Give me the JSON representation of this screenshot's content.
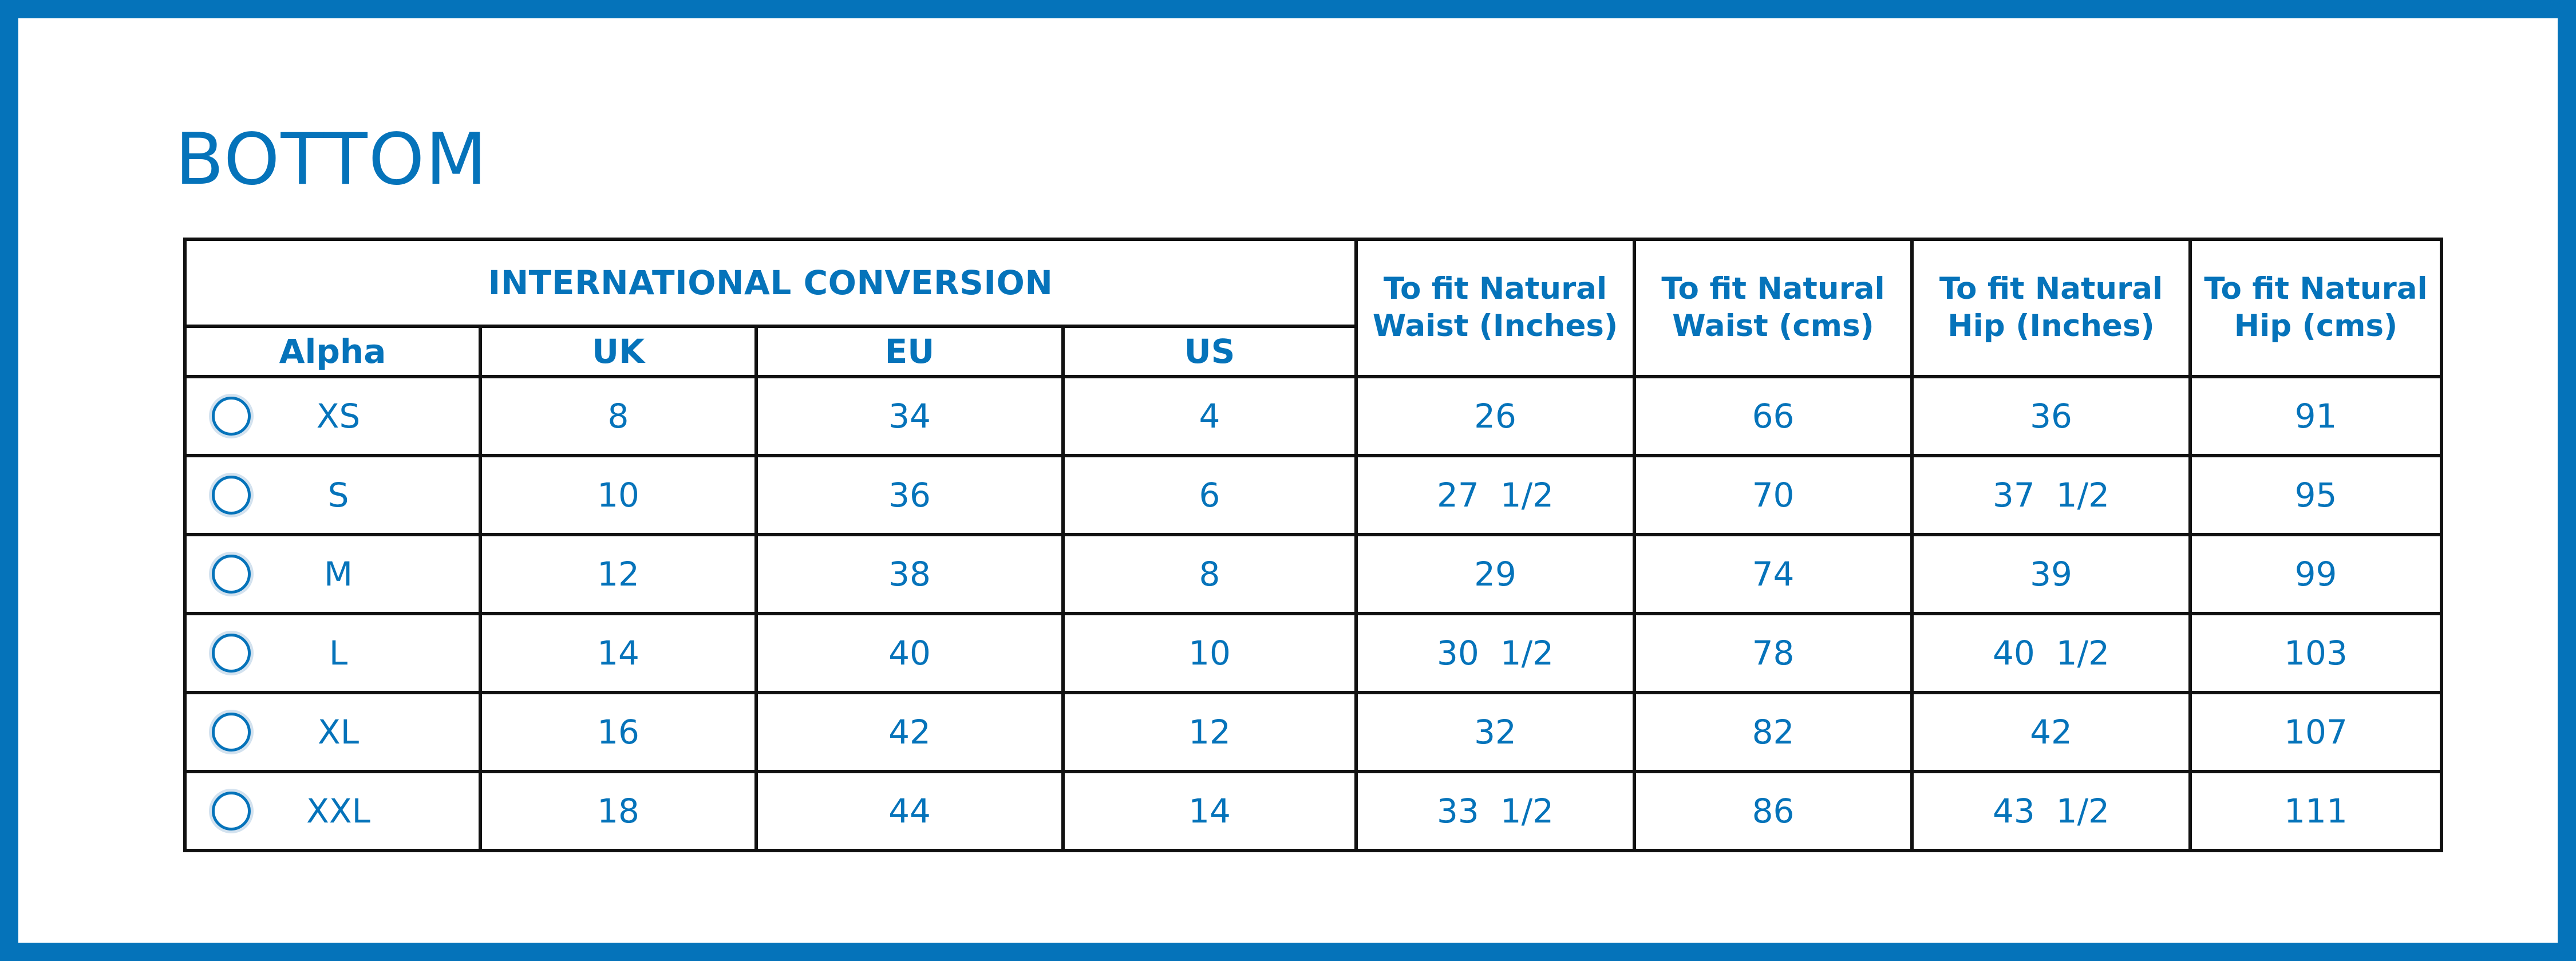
{
  "title": "BOTTOM",
  "table": {
    "group_header": "INTERNATIONAL CONVERSION",
    "sub_headers": [
      "Alpha",
      "UK",
      "EU",
      "US"
    ],
    "fit_headers": [
      {
        "line1": "To fit Natural",
        "line2": "Waist (Inches)"
      },
      {
        "line1": "To fit Natural",
        "line2": "Waist (cms)"
      },
      {
        "line1": "To fit Natural",
        "line2": "Hip (Inches)"
      },
      {
        "line1": "To fit Natural",
        "line2": "Hip (cms)"
      }
    ],
    "rows": [
      {
        "alpha": "XS",
        "uk": "8",
        "eu": "34",
        "us": "4",
        "waist_in": "26",
        "waist_cm": "66",
        "hip_in": "36",
        "hip_cm": "91"
      },
      {
        "alpha": "S",
        "uk": "10",
        "eu": "36",
        "us": "6",
        "waist_in": "27  1/2",
        "waist_cm": "70",
        "hip_in": "37  1/2",
        "hip_cm": "95"
      },
      {
        "alpha": "M",
        "uk": "12",
        "eu": "38",
        "us": "8",
        "waist_in": "29",
        "waist_cm": "74",
        "hip_in": "39",
        "hip_cm": "99"
      },
      {
        "alpha": "L",
        "uk": "14",
        "eu": "40",
        "us": "10",
        "waist_in": "30  1/2",
        "waist_cm": "78",
        "hip_in": "40  1/2",
        "hip_cm": "103"
      },
      {
        "alpha": "XL",
        "uk": "16",
        "eu": "42",
        "us": "12",
        "waist_in": "32",
        "waist_cm": "82",
        "hip_in": "42",
        "hip_cm": "107"
      },
      {
        "alpha": "XXL",
        "uk": "18",
        "eu": "44",
        "us": "14",
        "waist_in": "33  1/2",
        "waist_cm": "86",
        "hip_in": "43  1/2",
        "hip_cm": "111"
      }
    ]
  },
  "colors": {
    "brand_blue": "#0573ba",
    "grid_line": "#111111"
  }
}
